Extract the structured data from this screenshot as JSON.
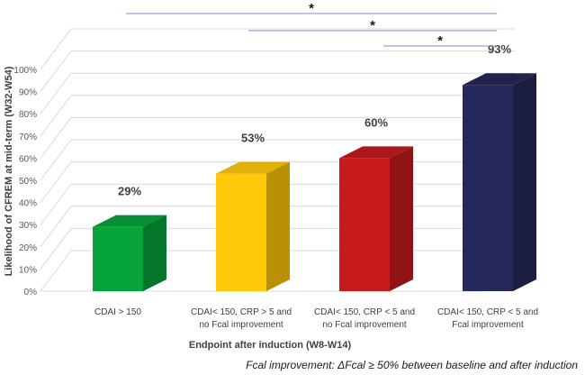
{
  "chart_data": {
    "type": "bar",
    "style": "3d",
    "title": "",
    "ylabel": "Likelihood  of CFREM at mid-term (W32-W54)",
    "xlabel": "Endpoint  after induction (W8-W14)",
    "ylim": [
      0,
      100
    ],
    "y_ticks": [
      "0%",
      "10%",
      "20%",
      "30%",
      "40%",
      "50%",
      "60%",
      "70%",
      "80%",
      "90%",
      "100%"
    ],
    "grid": true,
    "categories": [
      [
        "CDAI > 150"
      ],
      [
        "CDAI< 150, CRP > 5 and",
        "no Fcal improvement"
      ],
      [
        "CDAI< 150, CRP < 5 and",
        "no Fcal improvement"
      ],
      [
        "CDAI< 150, CRP < 5 and",
        "Fcal improvement"
      ]
    ],
    "values": [
      29,
      53,
      60,
      93
    ],
    "data_labels": [
      "29%",
      "53%",
      "60%",
      "93%"
    ],
    "colors": [
      "#07a33b",
      "#ffc90a",
      "#c61a1c",
      "#25285a"
    ],
    "significance": [
      {
        "from": 0,
        "to": 3,
        "label": "*"
      },
      {
        "from": 1,
        "to": 3,
        "label": "*"
      },
      {
        "from": 2,
        "to": 3,
        "label": "*"
      }
    ],
    "bracket_color": "#7b8fd0"
  },
  "footnote": "Fcal improvement: ΔFcal ≥ 50% between baseline and after induction"
}
